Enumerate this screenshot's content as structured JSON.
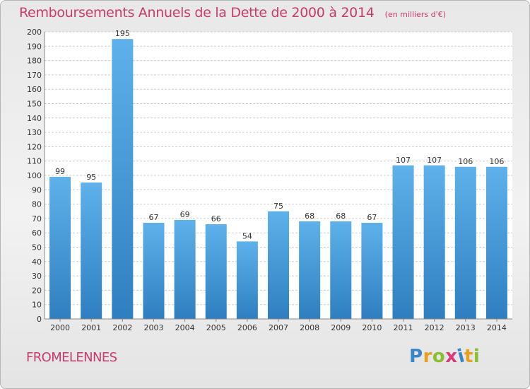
{
  "chart_data": {
    "type": "bar",
    "title": "Remboursements Annuels de la Dette de 2000 à 2014",
    "subtitle": "(en milliers d'€)",
    "categories": [
      "2000",
      "2001",
      "2002",
      "2003",
      "2004",
      "2005",
      "2006",
      "2007",
      "2008",
      "2009",
      "2010",
      "2011",
      "2012",
      "2013",
      "2014"
    ],
    "values": [
      99,
      95,
      195,
      67,
      69,
      66,
      54,
      75,
      68,
      68,
      67,
      107,
      107,
      106,
      106
    ],
    "ylim": [
      0,
      200
    ],
    "ytick_step": 10,
    "grid": true,
    "bar_color_top": "#5eb1ea",
    "bar_color_bottom": "#2f7fc0"
  },
  "footer": {
    "town": "FROMELENNES",
    "brand": "Proxiti",
    "brand_colors": [
      "#3a86c8",
      "#e8a020",
      "#8bbf2f",
      "#d93b7a",
      "#3a86c8",
      "#e8a020",
      "#8bbf2f"
    ]
  }
}
